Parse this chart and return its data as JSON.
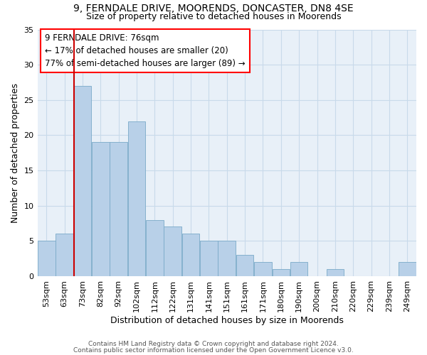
{
  "title1": "9, FERNDALE DRIVE, MOORENDS, DONCASTER, DN8 4SE",
  "title2": "Size of property relative to detached houses in Moorends",
  "xlabel": "Distribution of detached houses by size in Moorends",
  "ylabel": "Number of detached properties",
  "categories": [
    "53sqm",
    "63sqm",
    "73sqm",
    "82sqm",
    "92sqm",
    "102sqm",
    "112sqm",
    "122sqm",
    "131sqm",
    "141sqm",
    "151sqm",
    "161sqm",
    "171sqm",
    "180sqm",
    "190sqm",
    "200sqm",
    "210sqm",
    "220sqm",
    "229sqm",
    "239sqm",
    "249sqm"
  ],
  "values": [
    5,
    6,
    27,
    19,
    19,
    22,
    8,
    7,
    6,
    5,
    5,
    3,
    2,
    1,
    2,
    0,
    1,
    0,
    0,
    0,
    2
  ],
  "bar_color": "#b8d0e8",
  "bar_edge_color": "#7aaac8",
  "grid_color": "#c8daea",
  "background_color": "#e8f0f8",
  "annotation_text": "9 FERNDALE DRIVE: 76sqm\n← 17% of detached houses are smaller (20)\n77% of semi-detached houses are larger (89) →",
  "vline_index": 2,
  "vline_color": "#cc0000",
  "ylim": [
    0,
    35
  ],
  "yticks": [
    0,
    5,
    10,
    15,
    20,
    25,
    30,
    35
  ],
  "footer1": "Contains HM Land Registry data © Crown copyright and database right 2024.",
  "footer2": "Contains public sector information licensed under the Open Government Licence v3.0.",
  "title_fontsize": 10,
  "subtitle_fontsize": 9,
  "ylabel_fontsize": 9,
  "xlabel_fontsize": 9,
  "tick_fontsize": 8,
  "footer_fontsize": 6.5
}
